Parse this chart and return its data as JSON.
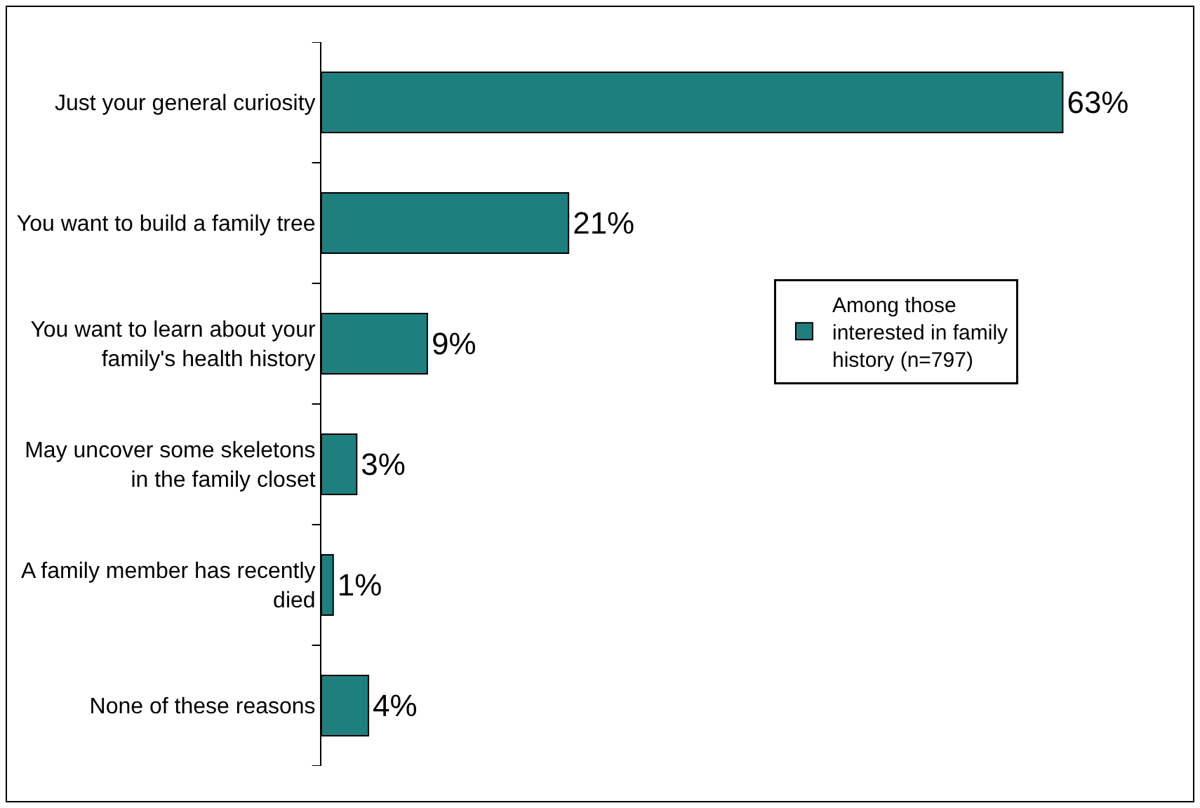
{
  "chart_data": {
    "type": "bar",
    "orientation": "horizontal",
    "categories": [
      "Just your general curiosity",
      "You want to build a family tree",
      "You want to learn about your\nfamily's health history",
      "May uncover some skeletons\nin the family closet",
      "A family member has recently\ndied",
      "None of these reasons"
    ],
    "series": [
      {
        "name": "Among those\ninterested in family\nhistory (n=797)",
        "color": "#1f7f7f",
        "values": [
          63,
          21,
          9,
          3,
          1,
          4
        ],
        "value_labels": [
          "63%",
          "21%",
          "9%",
          "3%",
          "1%",
          "4%"
        ]
      }
    ],
    "legend": "right",
    "grid": false
  }
}
